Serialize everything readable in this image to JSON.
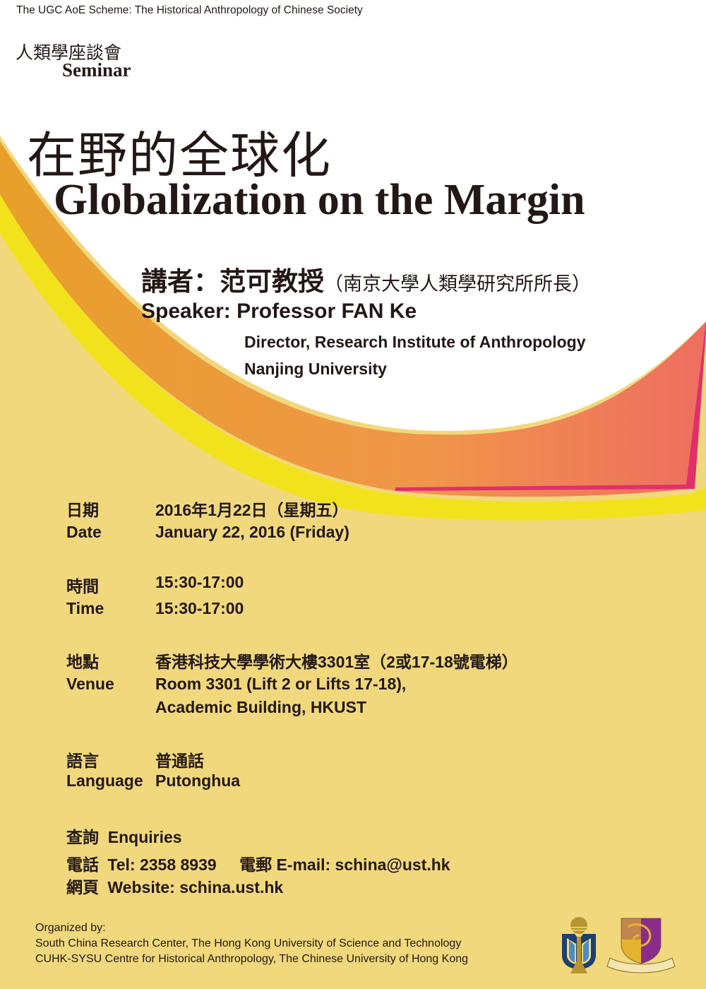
{
  "header": {
    "scheme": "The UGC AoE Scheme: The Historical Anthropology of Chinese Society",
    "seminar_zh": "人類學座談會",
    "seminar_en": "Seminar"
  },
  "title": {
    "zh": "在野的全球化",
    "en": "Globalization on the Margin"
  },
  "speaker": {
    "zh_main": "講者：范可教授",
    "zh_affil": "（南京大學人類學研究所所長）",
    "en": "Speaker: Professor FAN Ke",
    "position": "Director, Research Institute of Anthropology",
    "university": "Nanjing University"
  },
  "details": {
    "date": {
      "label_zh": "日期",
      "label_en": "Date",
      "value_zh": "2016年1月22日（星期五）",
      "value_en": "January 22, 2016 (Friday)"
    },
    "time": {
      "label_zh": "時間",
      "label_en": "Time",
      "value_zh": "15:30-17:00",
      "value_en": "15:30-17:00"
    },
    "venue": {
      "label_zh": "地點",
      "label_en": "Venue",
      "value_zh": "香港科技大學學術大樓3301室（2或17-18號電梯）",
      "value_en_1": "Room 3301 (Lift 2 or Lifts 17-18),",
      "value_en_2": "Academic Building, HKUST"
    },
    "language": {
      "label_zh": "語言",
      "label_en": "Language",
      "value_zh": "普通話",
      "value_en": "Putonghua"
    }
  },
  "enquiries": {
    "heading": "查詢  Enquiries",
    "tel_label": "電話",
    "tel": "Tel: 2358 8939",
    "email_label": "電郵",
    "email": "E-mail: schina@ust.hk",
    "web_label": "網頁",
    "web": "Website: schina.ust.hk"
  },
  "organizers": {
    "heading": "Organized by:",
    "line1": "South China Research Center, The Hong Kong University of Science and Technology",
    "line2": "CUHK-SYSU Centre for Historical Anthropology, The Chinese University of Hong Kong"
  },
  "logos": [
    "hkust-logo",
    "cuhk-crest"
  ],
  "colors": {
    "background": "#f1d87c",
    "orange_band": "#ec8f3c",
    "yellow_band": "#f2e21c",
    "pink_edge": "#e0306a",
    "hkust_blue": "#1d3f73",
    "hkust_gold": "#b8952f",
    "cuhk_purple": "#8a2d8a"
  }
}
